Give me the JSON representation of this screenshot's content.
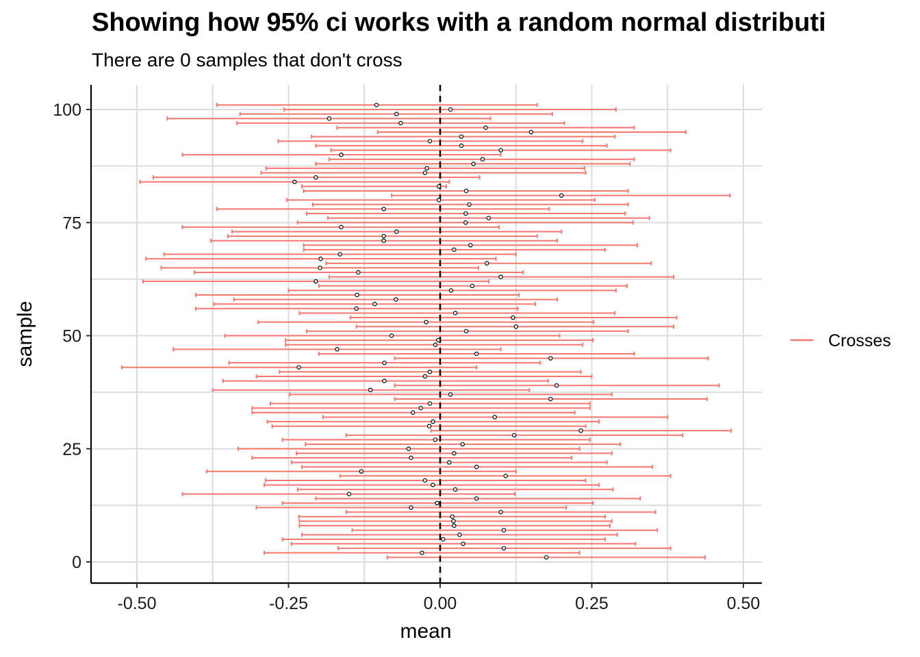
{
  "chart_data": {
    "type": "errorbar",
    "title": "Showing how 95% ci works with a random normal distributi",
    "subtitle": "There are 0 samples that don't cross",
    "xlabel": "mean",
    "ylabel": "sample",
    "xlim": [
      -0.5,
      0.5
    ],
    "ylim": [
      0,
      100
    ],
    "xticks": [
      -0.5,
      -0.25,
      0.0,
      0.25,
      0.5
    ],
    "xtick_labels": [
      "-0.50",
      "-0.25",
      "0.00",
      "0.25",
      "0.50"
    ],
    "yticks": [
      0,
      25,
      50,
      75,
      100
    ],
    "ytick_labels": [
      "0",
      "25",
      "50",
      "75",
      "100"
    ],
    "reference_line": 0,
    "grid": true,
    "legend": {
      "placement": "right",
      "entries": [
        {
          "name": "Crosses",
          "color": "#f8766d"
        }
      ]
    },
    "series": [
      {
        "name": "Crosses",
        "color": "#f8766d",
        "points": [
          {
            "y": 1,
            "mean": 0.175,
            "lo": -0.087,
            "hi": 0.437
          },
          {
            "y": 2,
            "mean": -0.03,
            "lo": -0.29,
            "hi": 0.23
          },
          {
            "y": 3,
            "mean": 0.105,
            "lo": -0.168,
            "hi": 0.38
          },
          {
            "y": 4,
            "mean": 0.038,
            "lo": -0.245,
            "hi": 0.322
          },
          {
            "y": 5,
            "mean": 0.005,
            "lo": -0.26,
            "hi": 0.272
          },
          {
            "y": 6,
            "mean": 0.032,
            "lo": -0.228,
            "hi": 0.292
          },
          {
            "y": 7,
            "mean": 0.105,
            "lo": -0.145,
            "hi": 0.358
          },
          {
            "y": 8,
            "mean": 0.023,
            "lo": -0.232,
            "hi": 0.28
          },
          {
            "y": 9,
            "mean": 0.022,
            "lo": -0.232,
            "hi": 0.283
          },
          {
            "y": 10,
            "mean": 0.02,
            "lo": -0.233,
            "hi": 0.272
          },
          {
            "y": 11,
            "mean": 0.1,
            "lo": -0.155,
            "hi": 0.355
          },
          {
            "y": 12,
            "mean": -0.048,
            "lo": -0.303,
            "hi": 0.208
          },
          {
            "y": 13,
            "mean": -0.005,
            "lo": -0.26,
            "hi": 0.252
          },
          {
            "y": 14,
            "mean": 0.06,
            "lo": -0.205,
            "hi": 0.33
          },
          {
            "y": 15,
            "mean": -0.15,
            "lo": -0.425,
            "hi": 0.123
          },
          {
            "y": 16,
            "mean": 0.025,
            "lo": -0.235,
            "hi": 0.285
          },
          {
            "y": 17,
            "mean": -0.012,
            "lo": -0.29,
            "hi": 0.262
          },
          {
            "y": 18,
            "mean": -0.025,
            "lo": -0.288,
            "hi": 0.24
          },
          {
            "y": 19,
            "mean": 0.108,
            "lo": -0.165,
            "hi": 0.38
          },
          {
            "y": 20,
            "mean": -0.13,
            "lo": -0.385,
            "hi": 0.125
          },
          {
            "y": 21,
            "mean": 0.06,
            "lo": -0.228,
            "hi": 0.35
          },
          {
            "y": 22,
            "mean": 0.015,
            "lo": -0.245,
            "hi": 0.275
          },
          {
            "y": 23,
            "mean": -0.048,
            "lo": -0.31,
            "hi": 0.217
          },
          {
            "y": 24,
            "mean": 0.023,
            "lo": -0.237,
            "hi": 0.283
          },
          {
            "y": 25,
            "mean": -0.052,
            "lo": -0.333,
            "hi": 0.23
          },
          {
            "y": 26,
            "mean": 0.037,
            "lo": -0.222,
            "hi": 0.297
          },
          {
            "y": 27,
            "mean": -0.008,
            "lo": -0.26,
            "hi": 0.247
          },
          {
            "y": 28,
            "mean": 0.122,
            "lo": -0.155,
            "hi": 0.4
          },
          {
            "y": 29,
            "mean": 0.232,
            "lo": -0.015,
            "hi": 0.48
          },
          {
            "y": 30,
            "mean": -0.018,
            "lo": -0.277,
            "hi": 0.24
          },
          {
            "y": 31,
            "mean": -0.012,
            "lo": -0.285,
            "hi": 0.262
          },
          {
            "y": 32,
            "mean": 0.09,
            "lo": -0.193,
            "hi": 0.375
          },
          {
            "y": 33,
            "mean": -0.045,
            "lo": -0.31,
            "hi": 0.222
          },
          {
            "y": 34,
            "mean": -0.032,
            "lo": -0.31,
            "hi": 0.247
          },
          {
            "y": 35,
            "mean": -0.017,
            "lo": -0.28,
            "hi": 0.247
          },
          {
            "y": 36,
            "mean": 0.182,
            "lo": -0.075,
            "hi": 0.44
          },
          {
            "y": 37,
            "mean": 0.017,
            "lo": -0.248,
            "hi": 0.283
          },
          {
            "y": 38,
            "mean": -0.115,
            "lo": -0.375,
            "hi": 0.147
          },
          {
            "y": 39,
            "mean": 0.192,
            "lo": -0.075,
            "hi": 0.46
          },
          {
            "y": 40,
            "mean": -0.092,
            "lo": -0.358,
            "hi": 0.178
          },
          {
            "y": 41,
            "mean": -0.025,
            "lo": -0.303,
            "hi": 0.25
          },
          {
            "y": 42,
            "mean": -0.017,
            "lo": -0.265,
            "hi": 0.232
          },
          {
            "y": 43,
            "mean": -0.233,
            "lo": -0.525,
            "hi": 0.06
          },
          {
            "y": 44,
            "mean": -0.092,
            "lo": -0.348,
            "hi": 0.165
          },
          {
            "y": 45,
            "mean": 0.182,
            "lo": -0.075,
            "hi": 0.442
          },
          {
            "y": 46,
            "mean": 0.06,
            "lo": -0.2,
            "hi": 0.32
          },
          {
            "y": 47,
            "mean": -0.17,
            "lo": -0.44,
            "hi": 0.1
          },
          {
            "y": 48,
            "mean": -0.008,
            "lo": -0.255,
            "hi": 0.235
          },
          {
            "y": 49,
            "mean": -0.003,
            "lo": -0.255,
            "hi": 0.252
          },
          {
            "y": 50,
            "mean": -0.08,
            "lo": -0.355,
            "hi": 0.197
          },
          {
            "y": 51,
            "mean": 0.043,
            "lo": -0.22,
            "hi": 0.31
          },
          {
            "y": 52,
            "mean": 0.125,
            "lo": -0.138,
            "hi": 0.385
          },
          {
            "y": 53,
            "mean": -0.023,
            "lo": -0.3,
            "hi": 0.253
          },
          {
            "y": 54,
            "mean": 0.12,
            "lo": -0.148,
            "hi": 0.39
          },
          {
            "y": 55,
            "mean": 0.025,
            "lo": -0.232,
            "hi": 0.288
          },
          {
            "y": 56,
            "mean": -0.138,
            "lo": -0.403,
            "hi": 0.128
          },
          {
            "y": 57,
            "mean": -0.108,
            "lo": -0.373,
            "hi": 0.157
          },
          {
            "y": 58,
            "mean": -0.073,
            "lo": -0.34,
            "hi": 0.193
          },
          {
            "y": 59,
            "mean": -0.137,
            "lo": -0.403,
            "hi": 0.13
          },
          {
            "y": 60,
            "mean": 0.018,
            "lo": -0.25,
            "hi": 0.29
          },
          {
            "y": 61,
            "mean": 0.053,
            "lo": -0.2,
            "hi": 0.308
          },
          {
            "y": 62,
            "mean": -0.205,
            "lo": -0.49,
            "hi": 0.08
          },
          {
            "y": 63,
            "mean": 0.1,
            "lo": -0.183,
            "hi": 0.385
          },
          {
            "y": 64,
            "mean": -0.135,
            "lo": -0.405,
            "hi": 0.137
          },
          {
            "y": 65,
            "mean": -0.198,
            "lo": -0.46,
            "hi": 0.063
          },
          {
            "y": 66,
            "mean": 0.077,
            "lo": -0.188,
            "hi": 0.348
          },
          {
            "y": 67,
            "mean": -0.197,
            "lo": -0.485,
            "hi": 0.092
          },
          {
            "y": 68,
            "mean": -0.165,
            "lo": -0.455,
            "hi": 0.125
          },
          {
            "y": 69,
            "mean": 0.023,
            "lo": -0.225,
            "hi": 0.272
          },
          {
            "y": 70,
            "mean": 0.05,
            "lo": -0.225,
            "hi": 0.325
          },
          {
            "y": 71,
            "mean": -0.093,
            "lo": -0.378,
            "hi": 0.193
          },
          {
            "y": 72,
            "mean": -0.093,
            "lo": -0.35,
            "hi": 0.16
          },
          {
            "y": 73,
            "mean": -0.072,
            "lo": -0.343,
            "hi": 0.2
          },
          {
            "y": 74,
            "mean": -0.163,
            "lo": -0.425,
            "hi": 0.097
          },
          {
            "y": 75,
            "mean": 0.042,
            "lo": -0.235,
            "hi": 0.318
          },
          {
            "y": 76,
            "mean": 0.08,
            "lo": -0.185,
            "hi": 0.345
          },
          {
            "y": 77,
            "mean": 0.042,
            "lo": -0.22,
            "hi": 0.305
          },
          {
            "y": 78,
            "mean": -0.093,
            "lo": -0.368,
            "hi": 0.18
          },
          {
            "y": 79,
            "mean": 0.048,
            "lo": -0.21,
            "hi": 0.31
          },
          {
            "y": 80,
            "mean": -0.002,
            "lo": -0.253,
            "hi": 0.255
          },
          {
            "y": 81,
            "mean": 0.2,
            "lo": -0.08,
            "hi": 0.478
          },
          {
            "y": 82,
            "mean": 0.043,
            "lo": -0.225,
            "hi": 0.31
          },
          {
            "y": 83,
            "mean": -0.002,
            "lo": -0.228,
            "hi": 0.01
          },
          {
            "y": 84,
            "mean": -0.24,
            "lo": -0.495,
            "hi": 0.015
          },
          {
            "y": 85,
            "mean": -0.205,
            "lo": -0.473,
            "hi": 0.065
          },
          {
            "y": 86,
            "mean": -0.025,
            "lo": -0.295,
            "hi": 0.24
          },
          {
            "y": 87,
            "mean": -0.022,
            "lo": -0.287,
            "hi": 0.238
          },
          {
            "y": 88,
            "mean": 0.055,
            "lo": -0.205,
            "hi": 0.313
          },
          {
            "y": 89,
            "mean": 0.07,
            "lo": -0.183,
            "hi": 0.32
          },
          {
            "y": 90,
            "mean": -0.163,
            "lo": -0.425,
            "hi": 0.1
          },
          {
            "y": 91,
            "mean": 0.1,
            "lo": -0.18,
            "hi": 0.38
          },
          {
            "y": 92,
            "mean": 0.035,
            "lo": -0.205,
            "hi": 0.275
          },
          {
            "y": 93,
            "mean": -0.017,
            "lo": -0.267,
            "hi": 0.235
          },
          {
            "y": 94,
            "mean": 0.035,
            "lo": -0.212,
            "hi": 0.288
          },
          {
            "y": 95,
            "mean": 0.15,
            "lo": -0.103,
            "hi": 0.405
          },
          {
            "y": 96,
            "mean": 0.075,
            "lo": -0.17,
            "hi": 0.32
          },
          {
            "y": 97,
            "mean": -0.065,
            "lo": -0.335,
            "hi": 0.205
          },
          {
            "y": 98,
            "mean": -0.183,
            "lo": -0.45,
            "hi": 0.083
          },
          {
            "y": 99,
            "mean": -0.072,
            "lo": -0.33,
            "hi": 0.185
          },
          {
            "y": 100,
            "mean": 0.017,
            "lo": -0.257,
            "hi": 0.29
          },
          {
            "y": 101,
            "mean": -0.105,
            "lo": -0.368,
            "hi": 0.16
          }
        ]
      }
    ]
  }
}
